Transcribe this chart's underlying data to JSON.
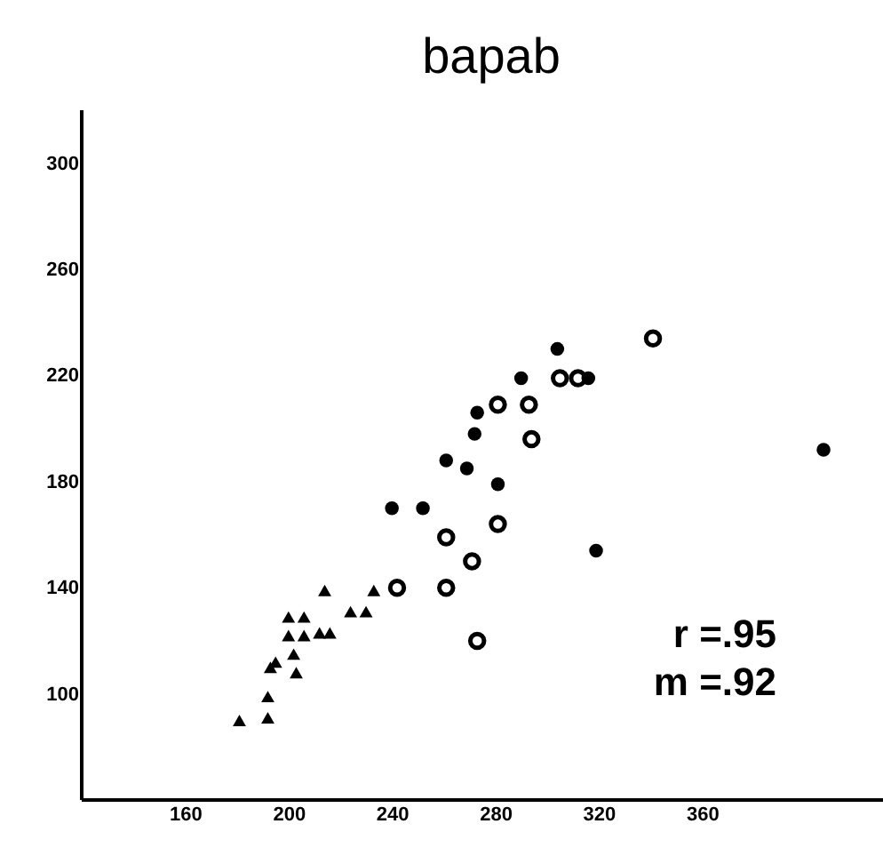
{
  "chart_data": {
    "type": "scatter",
    "title": "bapab",
    "annotations": [
      "r =.95",
      "m =.92"
    ],
    "xlim": [
      120,
      430
    ],
    "xticks": [
      160,
      200,
      240,
      280,
      320,
      360
    ],
    "ylim": [
      60,
      320
    ],
    "yticks": [
      100,
      140,
      180,
      220,
      260,
      300
    ],
    "grid": false,
    "series": [
      {
        "marker": "circle",
        "color": "#000000",
        "x": [
          304,
          290,
          273,
          272,
          261,
          269,
          281,
          240,
          252,
          316,
          407,
          319
        ],
        "values": [
          230,
          219,
          206,
          198,
          188,
          185,
          179,
          170,
          170,
          219,
          192,
          154
        ]
      },
      {
        "marker": "circle",
        "color": "#000000",
        "x": [
          341,
          305,
          312,
          281,
          293,
          294,
          281,
          261,
          271,
          242,
          261,
          273
        ],
        "values": [
          234,
          219,
          219,
          209,
          209,
          196,
          164,
          159,
          150,
          140,
          140,
          120
        ]
      },
      {
        "marker": "triangle",
        "color": "#000000",
        "x": [
          214,
          233,
          200,
          206,
          224,
          230,
          200,
          206,
          212,
          216,
          202,
          193,
          195,
          203,
          192,
          181,
          192
        ],
        "values": [
          139,
          139,
          129,
          129,
          131,
          131,
          122,
          122,
          123,
          123,
          115,
          110,
          112,
          108,
          99,
          90,
          91
        ]
      }
    ]
  }
}
